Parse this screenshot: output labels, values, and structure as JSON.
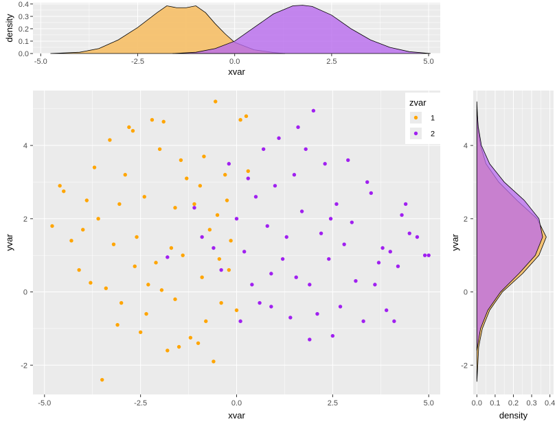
{
  "colors": {
    "panel_bg": "#EBEBEB",
    "grid_major": "#FFFFFF",
    "group1": "#FFA500",
    "group2": "#A020F0",
    "group1_fill": "#F6C16E",
    "group2_fill": "#B86AEE",
    "overlap_fill": "#B05CAD"
  },
  "chart_data": [
    {
      "id": "top-marginal-density",
      "type": "area",
      "xlabel": "xvar",
      "ylabel": "density",
      "xlim": [
        -5.2,
        5.3
      ],
      "ylim": [
        0,
        0.41
      ],
      "x_ticks": [
        -5.0,
        -2.5,
        0.0,
        2.5,
        5.0
      ],
      "x_tick_labels": [
        "-5.0",
        "-2.5",
        "0.0",
        "2.5",
        "5.0"
      ],
      "y_ticks": [
        0.0,
        0.1,
        0.2,
        0.3,
        0.4
      ],
      "y_tick_labels": [
        "0.0",
        "0.1",
        "0.2",
        "0.3",
        "0.4"
      ],
      "grid": true,
      "series": [
        {
          "name": "1",
          "x": [
            -4.75,
            -4.0,
            -3.5,
            -3.0,
            -2.5,
            -2.0,
            -1.75,
            -1.5,
            -1.25,
            -1.0,
            -0.75,
            -0.5,
            -0.25,
            0.0,
            0.5,
            1.0,
            1.3
          ],
          "y": [
            0.0,
            0.01,
            0.04,
            0.11,
            0.21,
            0.33,
            0.385,
            0.37,
            0.37,
            0.385,
            0.33,
            0.24,
            0.16,
            0.09,
            0.03,
            0.008,
            0.0
          ]
        },
        {
          "name": "2",
          "x": [
            -1.6,
            -1.0,
            -0.5,
            0.0,
            0.5,
            1.0,
            1.5,
            1.75,
            2.0,
            2.5,
            3.0,
            3.5,
            4.0,
            4.5,
            5.05
          ],
          "y": [
            0.0,
            0.01,
            0.04,
            0.1,
            0.21,
            0.32,
            0.385,
            0.39,
            0.38,
            0.31,
            0.2,
            0.11,
            0.05,
            0.015,
            0.0
          ]
        }
      ]
    },
    {
      "id": "main-scatter",
      "type": "scatter",
      "xlabel": "xvar",
      "ylabel": "yvar",
      "xlim": [
        -5.3,
        5.3
      ],
      "ylim": [
        -2.8,
        5.5
      ],
      "x_ticks": [
        -5.0,
        -2.5,
        0.0,
        2.5,
        5.0
      ],
      "x_tick_labels": [
        "-5.0",
        "-2.5",
        "0.0",
        "2.5",
        "5.0"
      ],
      "y_ticks": [
        -2,
        0,
        2,
        4
      ],
      "y_tick_labels": [
        "-2",
        "0",
        "2",
        "4"
      ],
      "grid": true,
      "legend": {
        "title": "zvar",
        "position": "top-right",
        "entries": [
          "1",
          "2"
        ]
      },
      "series": [
        {
          "name": "1",
          "points": [
            [
              -3.5,
              -2.4
            ],
            [
              -4.8,
              1.8
            ],
            [
              -4.6,
              2.9
            ],
            [
              -4.5,
              2.75
            ],
            [
              -4.3,
              1.4
            ],
            [
              -4.1,
              0.6
            ],
            [
              -3.9,
              2.5
            ],
            [
              -3.8,
              0.25
            ],
            [
              -3.4,
              0.1
            ],
            [
              -3.3,
              4.15
            ],
            [
              -3.1,
              -0.9
            ],
            [
              -3.0,
              -0.3
            ],
            [
              -2.8,
              4.5
            ],
            [
              -2.7,
              4.4
            ],
            [
              -2.6,
              1.5
            ],
            [
              -2.5,
              -1.1
            ],
            [
              -2.3,
              0.2
            ],
            [
              -2.2,
              4.7
            ],
            [
              -2.0,
              3.9
            ],
            [
              -1.9,
              4.65
            ],
            [
              -1.8,
              -1.6
            ],
            [
              -1.6,
              2.3
            ],
            [
              -1.5,
              -1.5
            ],
            [
              -1.4,
              1.0
            ],
            [
              -1.3,
              3.1
            ],
            [
              -1.2,
              -1.25
            ],
            [
              -1.0,
              -1.4
            ],
            [
              -0.9,
              0.4
            ],
            [
              -0.8,
              -0.8
            ],
            [
              -0.6,
              -1.9
            ],
            [
              -0.55,
              5.2
            ],
            [
              -0.4,
              -0.3
            ],
            [
              -0.3,
              3.2
            ],
            [
              -0.2,
              0.6
            ],
            [
              0.0,
              -0.5
            ],
            [
              0.1,
              4.7
            ],
            [
              0.25,
              4.8
            ],
            [
              0.3,
              3.3
            ],
            [
              -2.4,
              2.6
            ],
            [
              -2.1,
              0.8
            ],
            [
              -1.7,
              1.2
            ],
            [
              -1.1,
              2.4
            ],
            [
              -0.7,
              1.7
            ],
            [
              -0.5,
              2.1
            ],
            [
              -3.6,
              2.0
            ],
            [
              -3.2,
              1.3
            ],
            [
              -2.9,
              3.2
            ],
            [
              -2.35,
              -0.6
            ],
            [
              -1.95,
              0.05
            ],
            [
              -1.45,
              3.6
            ],
            [
              -0.95,
              2.9
            ],
            [
              -0.45,
              0.9
            ],
            [
              -0.15,
              1.4
            ],
            [
              -3.7,
              3.4
            ],
            [
              -4.0,
              1.7
            ],
            [
              -2.65,
              0.7
            ],
            [
              -1.6,
              -0.2
            ],
            [
              -0.85,
              3.7
            ],
            [
              -0.25,
              2.5
            ],
            [
              -3.05,
              2.4
            ]
          ]
        },
        {
          "name": "2",
          "points": [
            [
              -1.8,
              0.95
            ],
            [
              -1.1,
              2.3
            ],
            [
              -0.6,
              1.2
            ],
            [
              -0.2,
              3.5
            ],
            [
              0.1,
              -0.8
            ],
            [
              0.4,
              0.2
            ],
            [
              0.7,
              3.9
            ],
            [
              0.9,
              -0.4
            ],
            [
              1.1,
              4.2
            ],
            [
              1.4,
              -0.7
            ],
            [
              1.6,
              4.5
            ],
            [
              1.9,
              -1.3
            ],
            [
              2.0,
              4.95
            ],
            [
              2.3,
              3.5
            ],
            [
              2.5,
              -1.2
            ],
            [
              2.7,
              -0.4
            ],
            [
              2.9,
              3.6
            ],
            [
              3.1,
              0.3
            ],
            [
              3.3,
              -0.8
            ],
            [
              3.5,
              2.7
            ],
            [
              3.7,
              0.8
            ],
            [
              3.9,
              -0.5
            ],
            [
              4.0,
              1.1
            ],
            [
              4.1,
              -0.8
            ],
            [
              4.3,
              2.1
            ],
            [
              4.5,
              1.6
            ],
            [
              4.7,
              1.5
            ],
            [
              4.9,
              1.0
            ],
            [
              5.0,
              1.0
            ],
            [
              4.2,
              0.7
            ],
            [
              3.8,
              1.2
            ],
            [
              2.2,
              1.6
            ],
            [
              1.7,
              2.2
            ],
            [
              1.2,
              0.9
            ],
            [
              0.8,
              1.8
            ],
            [
              0.5,
              2.6
            ],
            [
              0.2,
              1.1
            ],
            [
              1.5,
              3.2
            ],
            [
              2.6,
              2.4
            ],
            [
              3.0,
              1.9
            ],
            [
              0.6,
              -0.3
            ],
            [
              1.9,
              0.2
            ],
            [
              2.4,
              0.9
            ],
            [
              1.0,
              2.9
            ],
            [
              0.3,
              3.1
            ],
            [
              3.4,
              3.0
            ],
            [
              2.8,
              1.3
            ],
            [
              1.3,
              1.5
            ],
            [
              0.0,
              2.0
            ],
            [
              -0.4,
              0.6
            ],
            [
              3.6,
              0.2
            ],
            [
              2.1,
              -0.6
            ],
            [
              1.8,
              3.9
            ],
            [
              0.9,
              0.5
            ],
            [
              4.4,
              2.4
            ],
            [
              -0.9,
              1.5
            ],
            [
              2.45,
              2.0
            ],
            [
              1.55,
              0.4
            ]
          ]
        }
      ]
    },
    {
      "id": "right-marginal-density",
      "type": "area",
      "xlabel": "density",
      "ylabel": "yvar",
      "xlim": [
        -0.02,
        0.42
      ],
      "ylim": [
        -2.8,
        5.5
      ],
      "x_ticks": [
        0.0,
        0.1,
        0.2,
        0.3,
        0.4
      ],
      "x_tick_labels": [
        "0.0",
        "0.1",
        "0.2",
        "0.3",
        "0.4"
      ],
      "y_ticks": [
        -2,
        0,
        2,
        4
      ],
      "y_tick_labels": [
        "-2",
        "0",
        "2",
        "4"
      ],
      "grid": true,
      "series": [
        {
          "name": "1",
          "y": [
            -2.45,
            -2.0,
            -1.5,
            -1.0,
            -0.5,
            0.0,
            0.5,
            1.0,
            1.5,
            2.0,
            2.5,
            3.0,
            3.5,
            4.0,
            4.5,
            5.2
          ],
          "x": [
            0.0,
            0.005,
            0.01,
            0.03,
            0.07,
            0.14,
            0.25,
            0.34,
            0.38,
            0.33,
            0.22,
            0.12,
            0.05,
            0.02,
            0.006,
            0.0
          ]
        },
        {
          "name": "2",
          "y": [
            -1.6,
            -1.0,
            -0.5,
            0.0,
            0.5,
            1.0,
            1.5,
            2.0,
            2.5,
            3.0,
            3.5,
            4.0,
            4.5,
            5.0
          ],
          "x": [
            0.0,
            0.02,
            0.06,
            0.13,
            0.23,
            0.32,
            0.36,
            0.34,
            0.26,
            0.15,
            0.07,
            0.025,
            0.008,
            0.0
          ]
        }
      ]
    }
  ]
}
